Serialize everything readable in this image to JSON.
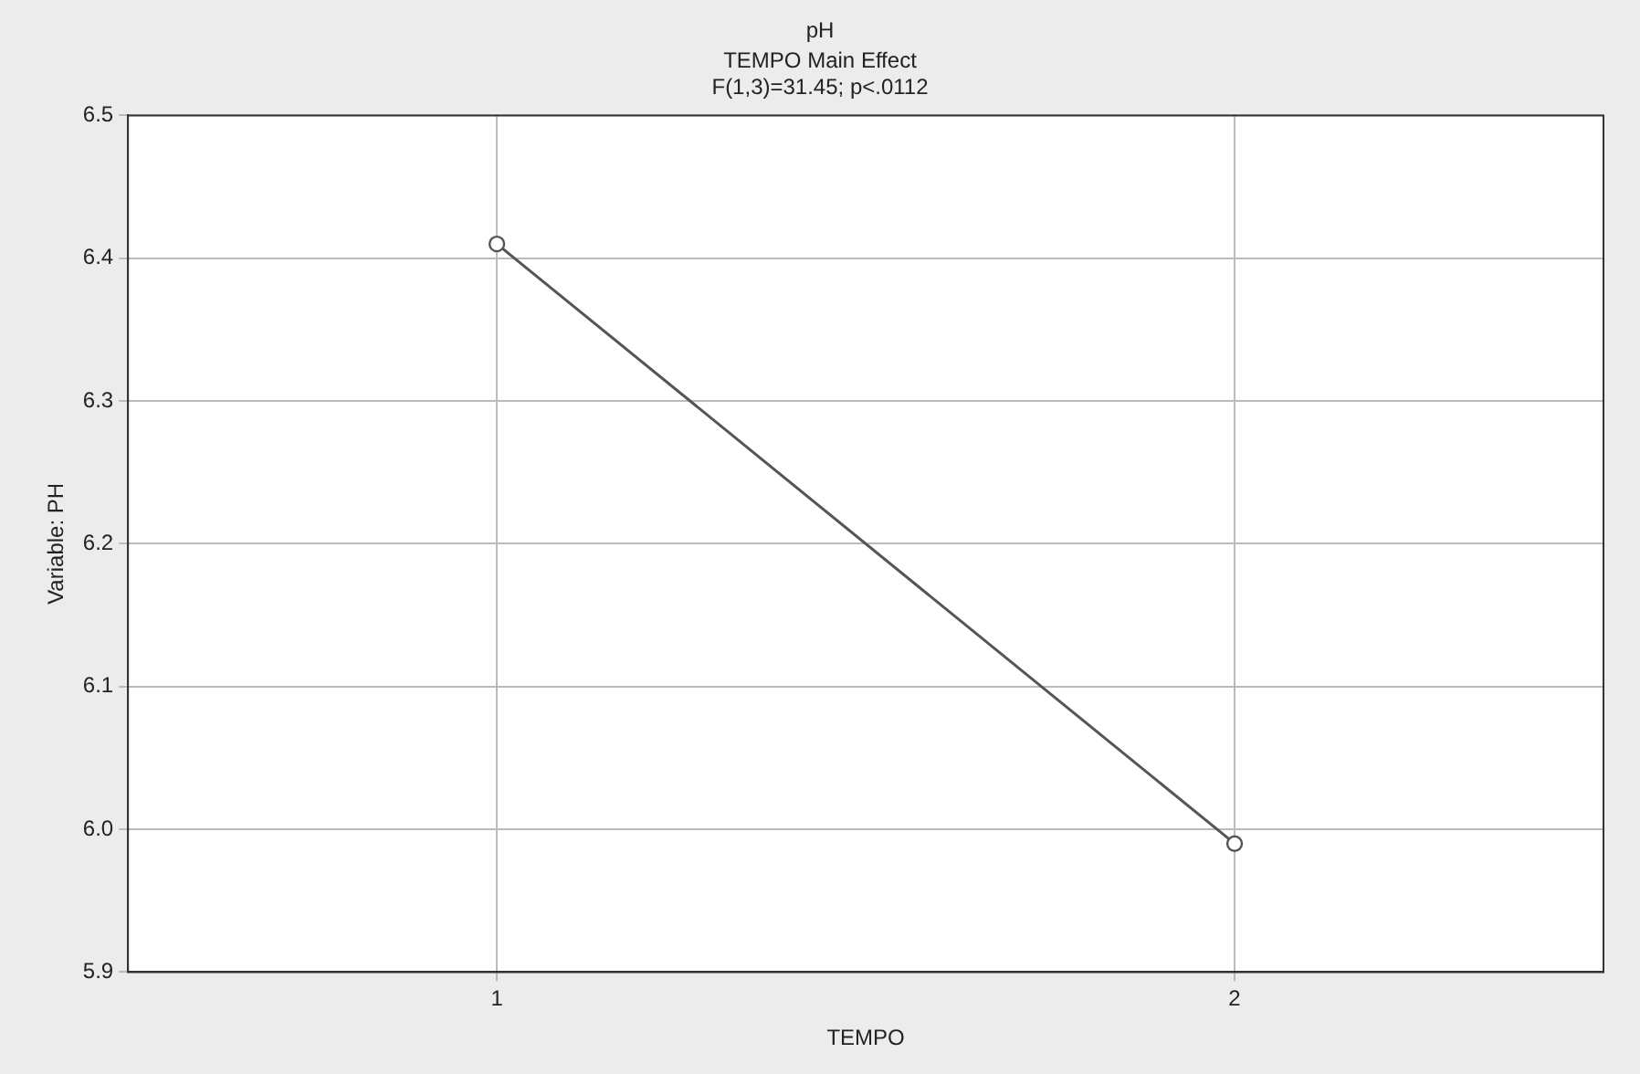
{
  "chart_data": {
    "type": "line",
    "title": "pH",
    "subtitle": "TEMPO Main Effect",
    "annotations": [
      "F(1,3)=31.45; p<.0112"
    ],
    "xlabel": "TEMPO",
    "ylabel": "Variable: PH",
    "categories": [
      "1",
      "2"
    ],
    "series": [
      {
        "color": "#555555",
        "values": [
          6.41,
          5.99
        ]
      }
    ],
    "ylim": [
      5.9,
      6.5
    ],
    "yticks": [
      5.9,
      {
        "value": 6,
        "label": "6.0"
      },
      6.1,
      6.2,
      6.3,
      6.4,
      6.5
    ],
    "grid": true,
    "legend": false,
    "marker": "circle",
    "line_style": "solid"
  }
}
